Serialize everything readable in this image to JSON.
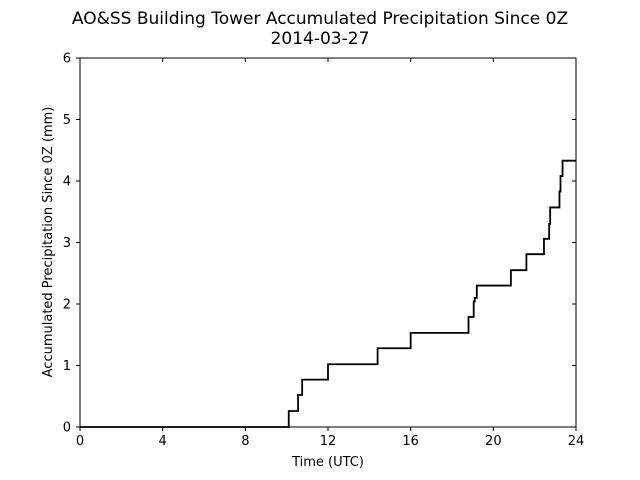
{
  "chart_data": {
    "type": "line",
    "title": "AO&SS Building Tower Accumulated Precipitation Since 0Z",
    "subtitle": "2014-03-27",
    "xlabel": "Time (UTC)",
    "ylabel": "Accumulated Precipitation Since 0Z (mm)",
    "xlim": [
      0,
      24
    ],
    "ylim": [
      0,
      6
    ],
    "xticks": [
      0,
      4,
      8,
      12,
      16,
      20,
      24
    ],
    "yticks": [
      0,
      1,
      2,
      3,
      4,
      5,
      6
    ],
    "grid": false,
    "series": [
      {
        "color": "#000000",
        "step": true,
        "x": [
          0,
          10.1,
          10.55,
          10.75,
          12.0,
          14.4,
          16.0,
          18.8,
          19.05,
          19.1,
          19.2,
          20.85,
          21.6,
          22.45,
          22.7,
          22.75,
          23.2,
          23.25,
          23.35,
          24.0
        ],
        "y": [
          0,
          0.26,
          0.52,
          0.77,
          1.02,
          1.28,
          1.53,
          1.79,
          2.04,
          2.1,
          2.3,
          2.55,
          2.81,
          3.06,
          3.3,
          3.57,
          3.83,
          4.08,
          4.33,
          4.33
        ]
      }
    ]
  }
}
